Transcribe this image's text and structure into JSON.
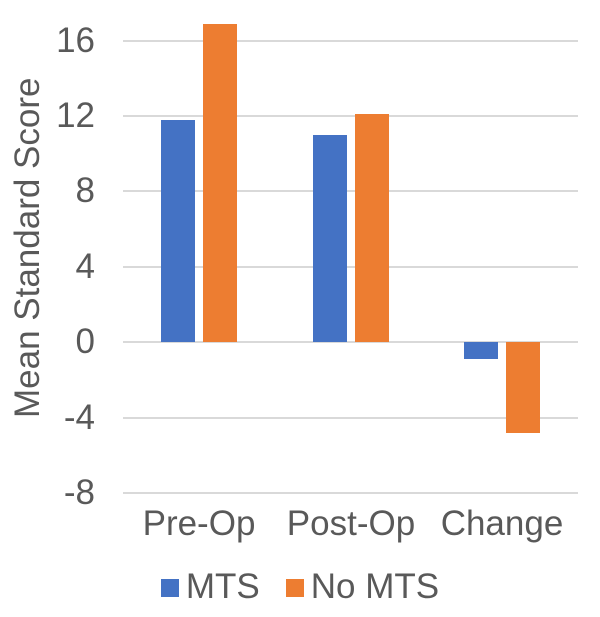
{
  "chart_data": {
    "type": "bar",
    "ylabel": "Mean Standard Score",
    "xlabel": "",
    "categories": [
      "Pre-Op",
      "Post-Op",
      "Change"
    ],
    "series": [
      {
        "name": "MTS",
        "color": "#4472C4",
        "values": [
          11.8,
          11.0,
          -0.9
        ]
      },
      {
        "name": "No MTS",
        "color": "#ED7D31",
        "values": [
          16.9,
          12.1,
          -4.8
        ]
      }
    ],
    "yticks": [
      -8,
      -4,
      0,
      4,
      8,
      12,
      16
    ],
    "ylim": [
      -8,
      18
    ],
    "grid": true,
    "gridline_color": "#D9D9D9",
    "text_color": "#595959",
    "background_color": "#FFFFFF",
    "legend_position": "bottom"
  }
}
